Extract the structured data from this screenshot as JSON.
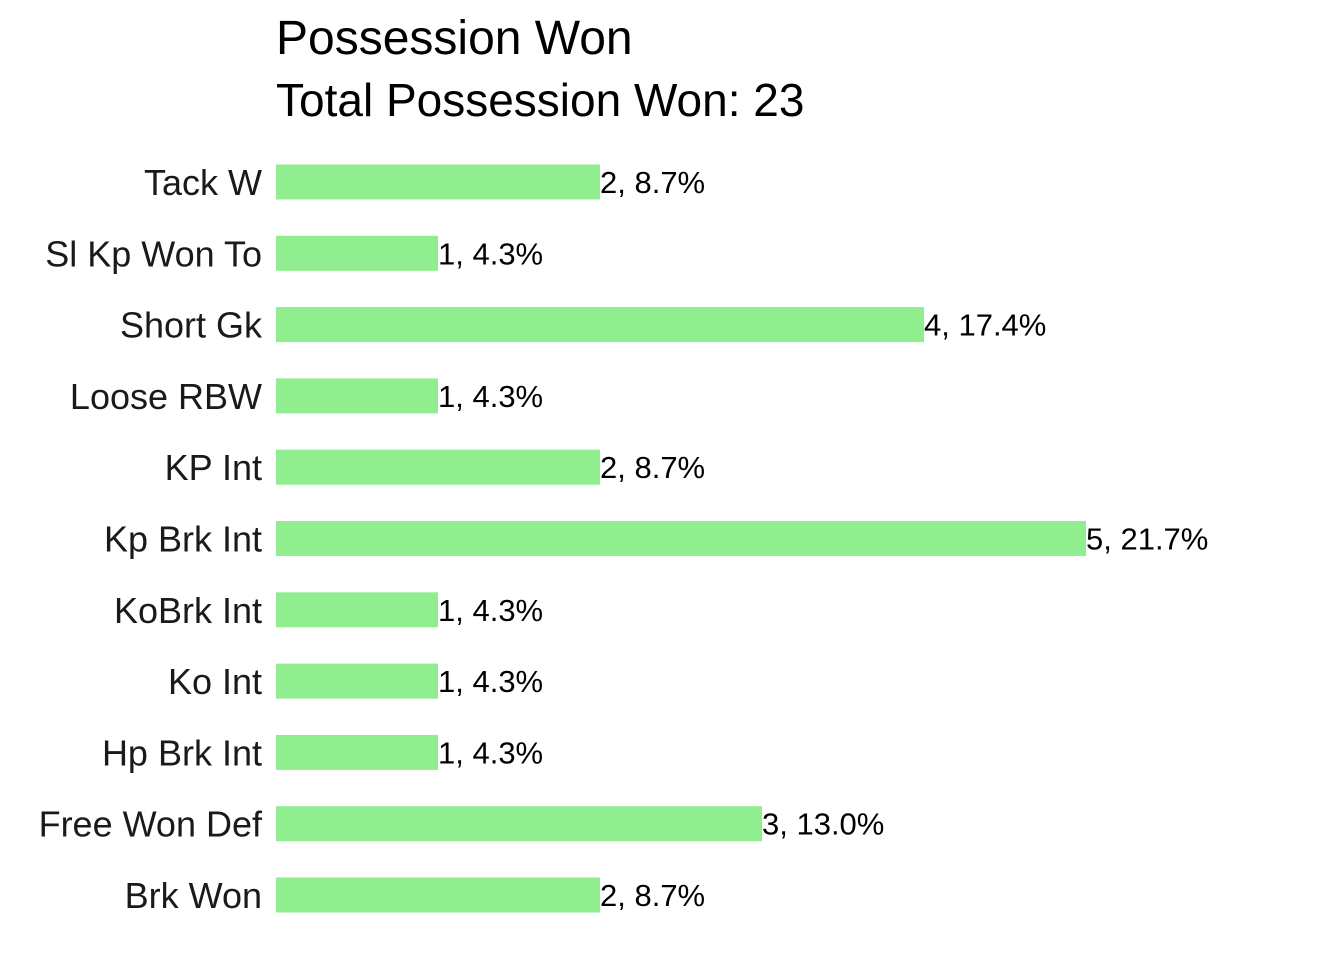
{
  "chart_data": {
    "type": "bar",
    "orientation": "horizontal",
    "title": "Possession Won",
    "subtitle": "Total Possession Won: 23",
    "xlabel": "",
    "ylabel": "",
    "categories": [
      "Tack W",
      "Sl Kp Won To",
      "Short Gk",
      "Loose RBW",
      "KP Int",
      "Kp Brk Int",
      "KoBrk Int",
      "Ko Int",
      "Hp Brk Int",
      "Free Won Def",
      "Brk Won"
    ],
    "values": [
      2,
      1,
      4,
      1,
      2,
      5,
      1,
      1,
      1,
      3,
      2
    ],
    "data_labels": [
      "2, 8.7%",
      "1, 4.3%",
      "4, 17.4%",
      "1, 4.3%",
      "2, 8.7%",
      "5, 21.7%",
      "1, 4.3%",
      "1, 4.3%",
      "1, 4.3%",
      "3, 13.0%",
      "2, 8.7%"
    ],
    "xlim": [
      0,
      5
    ],
    "grid": false,
    "legend": "none",
    "bar_color": "#90ee90"
  }
}
